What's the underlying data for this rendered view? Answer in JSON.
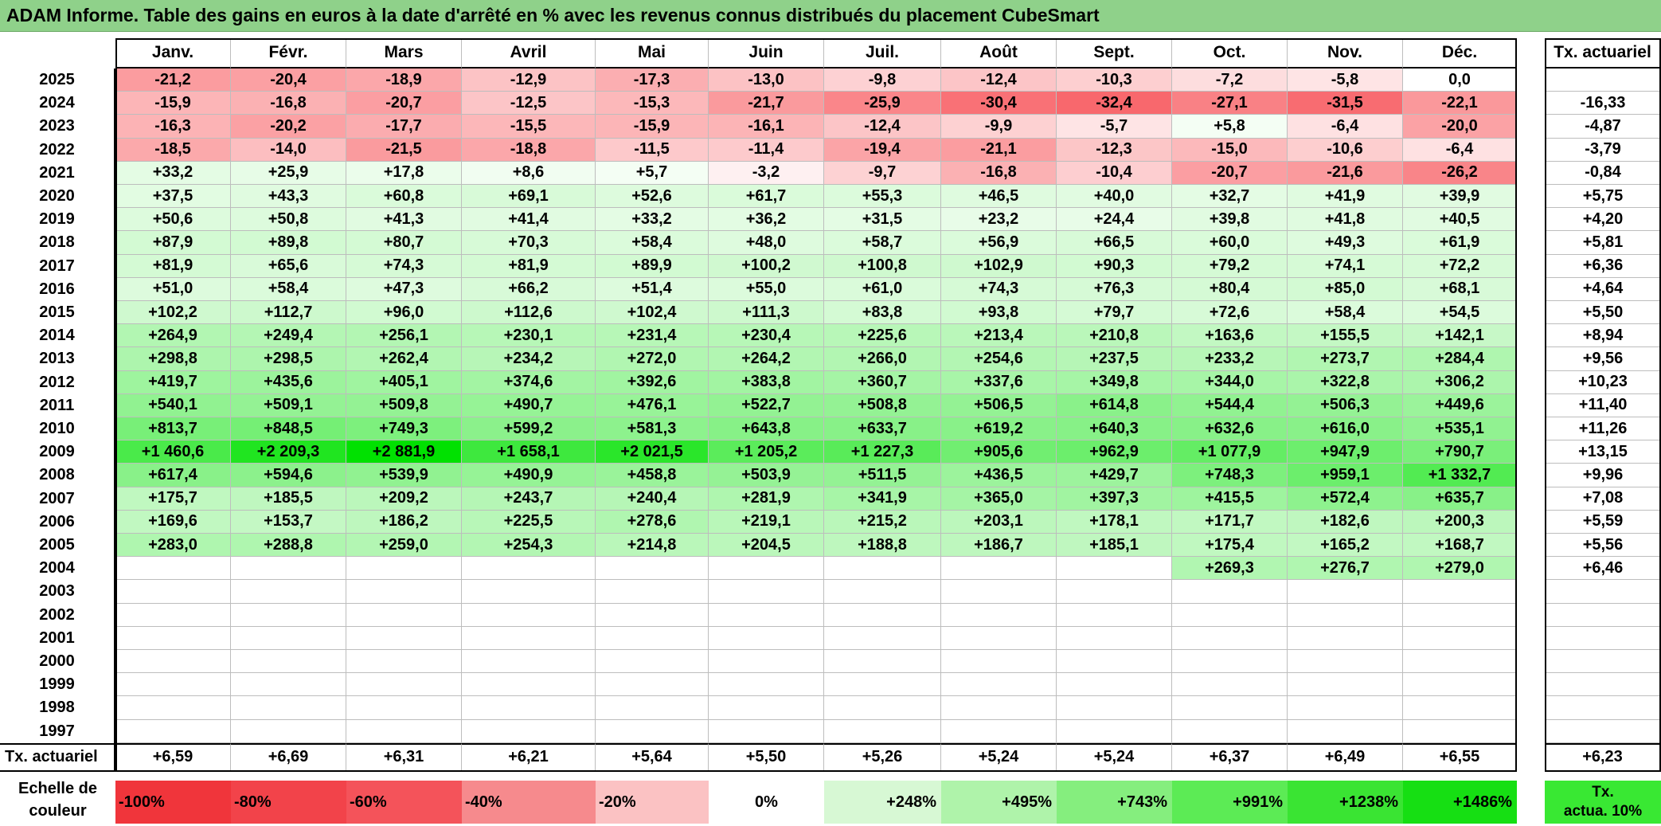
{
  "title": "ADAM Informe. Table des gains en euros à la date d'arrêté en % avec les revenus connus distribués du placement CubeSmart",
  "months": [
    "Janv.",
    "Févr.",
    "Mars",
    "Avril",
    "Mai",
    "Juin",
    "Juil.",
    "Août",
    "Sept.",
    "Oct.",
    "Nov.",
    "Déc."
  ],
  "rate_header": "Tx. actuariel",
  "rows": [
    {
      "year": "2025",
      "values": [
        "-21,2",
        "-20,4",
        "-18,9",
        "-12,9",
        "-17,3",
        "-13,0",
        "-9,8",
        "-12,4",
        "-10,3",
        "-7,2",
        "-5,8",
        "0,0"
      ],
      "rate": ""
    },
    {
      "year": "2024",
      "values": [
        "-15,9",
        "-16,8",
        "-20,7",
        "-12,5",
        "-15,3",
        "-21,7",
        "-25,9",
        "-30,4",
        "-32,4",
        "-27,1",
        "-31,5",
        "-22,1"
      ],
      "rate": "-16,33"
    },
    {
      "year": "2023",
      "values": [
        "-16,3",
        "-20,2",
        "-17,7",
        "-15,5",
        "-15,9",
        "-16,1",
        "-12,4",
        "-9,9",
        "-5,7",
        "+5,8",
        "-6,4",
        "-20,0"
      ],
      "rate": "-4,87"
    },
    {
      "year": "2022",
      "values": [
        "-18,5",
        "-14,0",
        "-21,5",
        "-18,8",
        "-11,5",
        "-11,4",
        "-19,4",
        "-21,1",
        "-12,3",
        "-15,0",
        "-10,6",
        "-6,4"
      ],
      "rate": "-3,79"
    },
    {
      "year": "2021",
      "values": [
        "+33,2",
        "+25,9",
        "+17,8",
        "+8,6",
        "+5,7",
        "-3,2",
        "-9,7",
        "-16,8",
        "-10,4",
        "-20,7",
        "-21,6",
        "-26,2"
      ],
      "rate": "-0,84"
    },
    {
      "year": "2020",
      "values": [
        "+37,5",
        "+43,3",
        "+60,8",
        "+69,1",
        "+52,6",
        "+61,7",
        "+55,3",
        "+46,5",
        "+40,0",
        "+32,7",
        "+41,9",
        "+39,9"
      ],
      "rate": "+5,75"
    },
    {
      "year": "2019",
      "values": [
        "+50,6",
        "+50,8",
        "+41,3",
        "+41,4",
        "+33,2",
        "+36,2",
        "+31,5",
        "+23,2",
        "+24,4",
        "+39,8",
        "+41,8",
        "+40,5"
      ],
      "rate": "+4,20"
    },
    {
      "year": "2018",
      "values": [
        "+87,9",
        "+89,8",
        "+80,7",
        "+70,3",
        "+58,4",
        "+48,0",
        "+58,7",
        "+56,9",
        "+66,5",
        "+60,0",
        "+49,3",
        "+61,9"
      ],
      "rate": "+5,81"
    },
    {
      "year": "2017",
      "values": [
        "+81,9",
        "+65,6",
        "+74,3",
        "+81,9",
        "+89,9",
        "+100,2",
        "+100,8",
        "+102,9",
        "+90,3",
        "+79,2",
        "+74,1",
        "+72,2"
      ],
      "rate": "+6,36"
    },
    {
      "year": "2016",
      "values": [
        "+51,0",
        "+58,4",
        "+47,3",
        "+66,2",
        "+51,4",
        "+55,0",
        "+61,0",
        "+74,3",
        "+76,3",
        "+80,4",
        "+85,0",
        "+68,1"
      ],
      "rate": "+4,64"
    },
    {
      "year": "2015",
      "values": [
        "+102,2",
        "+112,7",
        "+96,0",
        "+112,6",
        "+102,4",
        "+111,3",
        "+83,8",
        "+93,8",
        "+79,7",
        "+72,6",
        "+58,4",
        "+54,5"
      ],
      "rate": "+5,50"
    },
    {
      "year": "2014",
      "values": [
        "+264,9",
        "+249,4",
        "+256,1",
        "+230,1",
        "+231,4",
        "+230,4",
        "+225,6",
        "+213,4",
        "+210,8",
        "+163,6",
        "+155,5",
        "+142,1"
      ],
      "rate": "+8,94"
    },
    {
      "year": "2013",
      "values": [
        "+298,8",
        "+298,5",
        "+262,4",
        "+234,2",
        "+272,0",
        "+264,2",
        "+266,0",
        "+254,6",
        "+237,5",
        "+233,2",
        "+273,7",
        "+284,4"
      ],
      "rate": "+9,56"
    },
    {
      "year": "2012",
      "values": [
        "+419,7",
        "+435,6",
        "+405,1",
        "+374,6",
        "+392,6",
        "+383,8",
        "+360,7",
        "+337,6",
        "+349,8",
        "+344,0",
        "+322,8",
        "+306,2"
      ],
      "rate": "+10,23"
    },
    {
      "year": "2011",
      "values": [
        "+540,1",
        "+509,1",
        "+509,8",
        "+490,7",
        "+476,1",
        "+522,7",
        "+508,8",
        "+506,5",
        "+614,8",
        "+544,4",
        "+506,3",
        "+449,6"
      ],
      "rate": "+11,40"
    },
    {
      "year": "2010",
      "values": [
        "+813,7",
        "+848,5",
        "+749,3",
        "+599,2",
        "+581,3",
        "+643,8",
        "+633,7",
        "+619,2",
        "+640,3",
        "+632,6",
        "+616,0",
        "+535,1"
      ],
      "rate": "+11,26"
    },
    {
      "year": "2009",
      "values": [
        "+1 460,6",
        "+2 209,3",
        "+2 881,9",
        "+1 658,1",
        "+2 021,5",
        "+1 205,2",
        "+1 227,3",
        "+905,6",
        "+962,9",
        "+1 077,9",
        "+947,9",
        "+790,7"
      ],
      "rate": "+13,15"
    },
    {
      "year": "2008",
      "values": [
        "+617,4",
        "+594,6",
        "+539,9",
        "+490,9",
        "+458,8",
        "+503,9",
        "+511,5",
        "+436,5",
        "+429,7",
        "+748,3",
        "+959,1",
        "+1 332,7"
      ],
      "rate": "+9,96"
    },
    {
      "year": "2007",
      "values": [
        "+175,7",
        "+185,5",
        "+209,2",
        "+243,7",
        "+240,4",
        "+281,9",
        "+341,9",
        "+365,0",
        "+397,3",
        "+415,5",
        "+572,4",
        "+635,7"
      ],
      "rate": "+7,08"
    },
    {
      "year": "2006",
      "values": [
        "+169,6",
        "+153,7",
        "+186,2",
        "+225,5",
        "+278,6",
        "+219,1",
        "+215,2",
        "+203,1",
        "+178,1",
        "+171,7",
        "+182,6",
        "+200,3"
      ],
      "rate": "+5,59"
    },
    {
      "year": "2005",
      "values": [
        "+283,0",
        "+288,8",
        "+259,0",
        "+254,3",
        "+214,8",
        "+204,5",
        "+188,8",
        "+186,7",
        "+185,1",
        "+175,4",
        "+165,2",
        "+168,7"
      ],
      "rate": "+5,56"
    },
    {
      "year": "2004",
      "values": [
        "",
        "",
        "",
        "",
        "",
        "",
        "",
        "",
        "",
        "+269,3",
        "+276,7",
        "+279,0"
      ],
      "rate": "+6,46"
    },
    {
      "year": "2003",
      "values": [
        "",
        "",
        "",
        "",
        "",
        "",
        "",
        "",
        "",
        "",
        "",
        ""
      ],
      "rate": ""
    },
    {
      "year": "2002",
      "values": [
        "",
        "",
        "",
        "",
        "",
        "",
        "",
        "",
        "",
        "",
        "",
        ""
      ],
      "rate": ""
    },
    {
      "year": "2001",
      "values": [
        "",
        "",
        "",
        "",
        "",
        "",
        "",
        "",
        "",
        "",
        "",
        ""
      ],
      "rate": ""
    },
    {
      "year": "2000",
      "values": [
        "",
        "",
        "",
        "",
        "",
        "",
        "",
        "",
        "",
        "",
        "",
        ""
      ],
      "rate": ""
    },
    {
      "year": "1999",
      "values": [
        "",
        "",
        "",
        "",
        "",
        "",
        "",
        "",
        "",
        "",
        "",
        ""
      ],
      "rate": ""
    },
    {
      "year": "1998",
      "values": [
        "",
        "",
        "",
        "",
        "",
        "",
        "",
        "",
        "",
        "",
        "",
        ""
      ],
      "rate": ""
    },
    {
      "year": "1997",
      "values": [
        "",
        "",
        "",
        "",
        "",
        "",
        "",
        "",
        "",
        "",
        "",
        ""
      ],
      "rate": ""
    }
  ],
  "footer": {
    "label": "Tx. actuariel",
    "values": [
      "+6,59",
      "+6,69",
      "+6,31",
      "+6,21",
      "+5,64",
      "+5,50",
      "+5,26",
      "+5,24",
      "+5,24",
      "+6,37",
      "+6,49",
      "+6,55"
    ],
    "rate": "+6,23"
  },
  "color_scale": {
    "label_line1": "Echelle de",
    "label_line2": "couleur",
    "steps": [
      {
        "label": "-100%",
        "color": "#f0353b",
        "align": "left"
      },
      {
        "label": "-80%",
        "color": "#f2434a",
        "align": "left"
      },
      {
        "label": "-60%",
        "color": "#f4535a",
        "align": "left"
      },
      {
        "label": "-40%",
        "color": "#f68a8d",
        "align": "left"
      },
      {
        "label": "-20%",
        "color": "#fbc2c3",
        "align": "left"
      },
      {
        "label": "0%",
        "color": "#ffffff",
        "align": "center"
      },
      {
        "label": "+248%",
        "color": "#d7f8d4",
        "align": "right"
      },
      {
        "label": "+495%",
        "color": "#aff3aa",
        "align": "right"
      },
      {
        "label": "+743%",
        "color": "#85ee7e",
        "align": "right"
      },
      {
        "label": "+991%",
        "color": "#5ceb55",
        "align": "right"
      },
      {
        "label": "+1238%",
        "color": "#3ae433",
        "align": "right"
      },
      {
        "label": "+1486%",
        "color": "#16df13",
        "align": "right"
      }
    ],
    "rate_legend_line1": "Tx.",
    "rate_legend_line2": "actua. 10%",
    "rate_legend_color": "#39e833"
  },
  "colors": {
    "title_bg": "#8fd18a",
    "neg_max": "#f8656a",
    "pos_max": "#00e100"
  }
}
